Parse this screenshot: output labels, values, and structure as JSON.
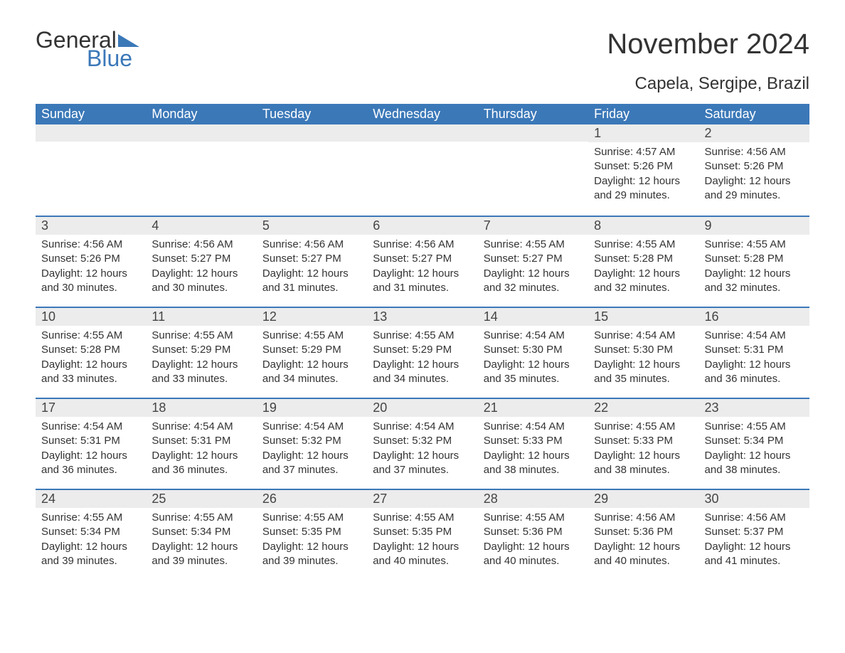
{
  "logo": {
    "text_left": "General",
    "text_right": "Blue"
  },
  "title": "November 2024",
  "subtitle": "Capela, Sergipe, Brazil",
  "colors": {
    "header_bg": "#3b78b8",
    "header_text": "#ffffff",
    "daynum_bg": "#ececec",
    "row_divider": "#3b78b8",
    "body_text": "#333333",
    "page_bg": "#ffffff",
    "logo_dark": "#333333",
    "logo_blue": "#3b78b8"
  },
  "typography": {
    "title_fontsize": 40,
    "subtitle_fontsize": 24,
    "header_fontsize": 18,
    "daynum_fontsize": 18,
    "body_fontsize": 15,
    "font_family": "Arial"
  },
  "calendar": {
    "type": "table",
    "columns": [
      "Sunday",
      "Monday",
      "Tuesday",
      "Wednesday",
      "Thursday",
      "Friday",
      "Saturday"
    ],
    "weeks": [
      [
        null,
        null,
        null,
        null,
        null,
        {
          "day": "1",
          "sunrise": "Sunrise: 4:57 AM",
          "sunset": "Sunset: 5:26 PM",
          "daylight": "Daylight: 12 hours and 29 minutes."
        },
        {
          "day": "2",
          "sunrise": "Sunrise: 4:56 AM",
          "sunset": "Sunset: 5:26 PM",
          "daylight": "Daylight: 12 hours and 29 minutes."
        }
      ],
      [
        {
          "day": "3",
          "sunrise": "Sunrise: 4:56 AM",
          "sunset": "Sunset: 5:26 PM",
          "daylight": "Daylight: 12 hours and 30 minutes."
        },
        {
          "day": "4",
          "sunrise": "Sunrise: 4:56 AM",
          "sunset": "Sunset: 5:27 PM",
          "daylight": "Daylight: 12 hours and 30 minutes."
        },
        {
          "day": "5",
          "sunrise": "Sunrise: 4:56 AM",
          "sunset": "Sunset: 5:27 PM",
          "daylight": "Daylight: 12 hours and 31 minutes."
        },
        {
          "day": "6",
          "sunrise": "Sunrise: 4:56 AM",
          "sunset": "Sunset: 5:27 PM",
          "daylight": "Daylight: 12 hours and 31 minutes."
        },
        {
          "day": "7",
          "sunrise": "Sunrise: 4:55 AM",
          "sunset": "Sunset: 5:27 PM",
          "daylight": "Daylight: 12 hours and 32 minutes."
        },
        {
          "day": "8",
          "sunrise": "Sunrise: 4:55 AM",
          "sunset": "Sunset: 5:28 PM",
          "daylight": "Daylight: 12 hours and 32 minutes."
        },
        {
          "day": "9",
          "sunrise": "Sunrise: 4:55 AM",
          "sunset": "Sunset: 5:28 PM",
          "daylight": "Daylight: 12 hours and 32 minutes."
        }
      ],
      [
        {
          "day": "10",
          "sunrise": "Sunrise: 4:55 AM",
          "sunset": "Sunset: 5:28 PM",
          "daylight": "Daylight: 12 hours and 33 minutes."
        },
        {
          "day": "11",
          "sunrise": "Sunrise: 4:55 AM",
          "sunset": "Sunset: 5:29 PM",
          "daylight": "Daylight: 12 hours and 33 minutes."
        },
        {
          "day": "12",
          "sunrise": "Sunrise: 4:55 AM",
          "sunset": "Sunset: 5:29 PM",
          "daylight": "Daylight: 12 hours and 34 minutes."
        },
        {
          "day": "13",
          "sunrise": "Sunrise: 4:55 AM",
          "sunset": "Sunset: 5:29 PM",
          "daylight": "Daylight: 12 hours and 34 minutes."
        },
        {
          "day": "14",
          "sunrise": "Sunrise: 4:54 AM",
          "sunset": "Sunset: 5:30 PM",
          "daylight": "Daylight: 12 hours and 35 minutes."
        },
        {
          "day": "15",
          "sunrise": "Sunrise: 4:54 AM",
          "sunset": "Sunset: 5:30 PM",
          "daylight": "Daylight: 12 hours and 35 minutes."
        },
        {
          "day": "16",
          "sunrise": "Sunrise: 4:54 AM",
          "sunset": "Sunset: 5:31 PM",
          "daylight": "Daylight: 12 hours and 36 minutes."
        }
      ],
      [
        {
          "day": "17",
          "sunrise": "Sunrise: 4:54 AM",
          "sunset": "Sunset: 5:31 PM",
          "daylight": "Daylight: 12 hours and 36 minutes."
        },
        {
          "day": "18",
          "sunrise": "Sunrise: 4:54 AM",
          "sunset": "Sunset: 5:31 PM",
          "daylight": "Daylight: 12 hours and 36 minutes."
        },
        {
          "day": "19",
          "sunrise": "Sunrise: 4:54 AM",
          "sunset": "Sunset: 5:32 PM",
          "daylight": "Daylight: 12 hours and 37 minutes."
        },
        {
          "day": "20",
          "sunrise": "Sunrise: 4:54 AM",
          "sunset": "Sunset: 5:32 PM",
          "daylight": "Daylight: 12 hours and 37 minutes."
        },
        {
          "day": "21",
          "sunrise": "Sunrise: 4:54 AM",
          "sunset": "Sunset: 5:33 PM",
          "daylight": "Daylight: 12 hours and 38 minutes."
        },
        {
          "day": "22",
          "sunrise": "Sunrise: 4:55 AM",
          "sunset": "Sunset: 5:33 PM",
          "daylight": "Daylight: 12 hours and 38 minutes."
        },
        {
          "day": "23",
          "sunrise": "Sunrise: 4:55 AM",
          "sunset": "Sunset: 5:34 PM",
          "daylight": "Daylight: 12 hours and 38 minutes."
        }
      ],
      [
        {
          "day": "24",
          "sunrise": "Sunrise: 4:55 AM",
          "sunset": "Sunset: 5:34 PM",
          "daylight": "Daylight: 12 hours and 39 minutes."
        },
        {
          "day": "25",
          "sunrise": "Sunrise: 4:55 AM",
          "sunset": "Sunset: 5:34 PM",
          "daylight": "Daylight: 12 hours and 39 minutes."
        },
        {
          "day": "26",
          "sunrise": "Sunrise: 4:55 AM",
          "sunset": "Sunset: 5:35 PM",
          "daylight": "Daylight: 12 hours and 39 minutes."
        },
        {
          "day": "27",
          "sunrise": "Sunrise: 4:55 AM",
          "sunset": "Sunset: 5:35 PM",
          "daylight": "Daylight: 12 hours and 40 minutes."
        },
        {
          "day": "28",
          "sunrise": "Sunrise: 4:55 AM",
          "sunset": "Sunset: 5:36 PM",
          "daylight": "Daylight: 12 hours and 40 minutes."
        },
        {
          "day": "29",
          "sunrise": "Sunrise: 4:56 AM",
          "sunset": "Sunset: 5:36 PM",
          "daylight": "Daylight: 12 hours and 40 minutes."
        },
        {
          "day": "30",
          "sunrise": "Sunrise: 4:56 AM",
          "sunset": "Sunset: 5:37 PM",
          "daylight": "Daylight: 12 hours and 41 minutes."
        }
      ]
    ]
  }
}
